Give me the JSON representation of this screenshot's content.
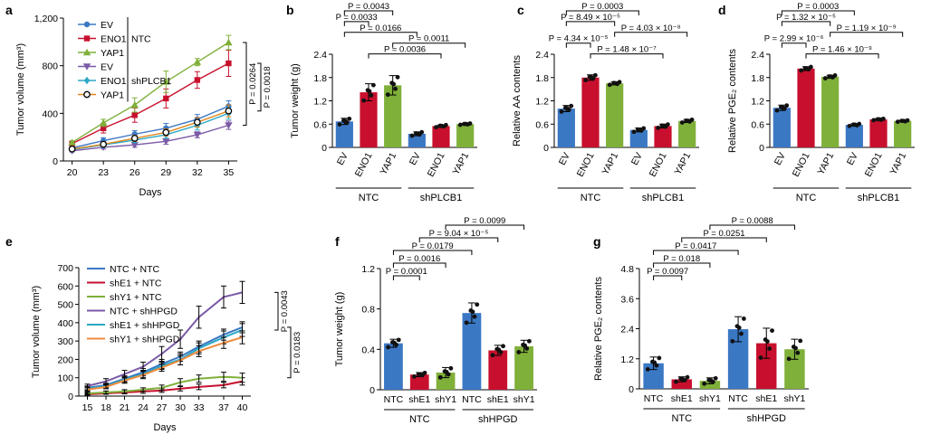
{
  "chart_data": [
    {
      "panel": "a",
      "type": "line",
      "xlabel": "Days",
      "ylabel": "Tumor volume (mm³)",
      "x": [
        20,
        23,
        26,
        29,
        32,
        35
      ],
      "xticks": [
        "20",
        "23",
        "26",
        "29",
        "32",
        "35"
      ],
      "ylim": [
        0,
        1200
      ],
      "yticks": [
        "0",
        "400",
        "800",
        "1,200"
      ],
      "legend_groups": [
        {
          "label": "NTC",
          "series": [
            0,
            1,
            2
          ]
        },
        {
          "label": "shPLCB1",
          "series": [
            3,
            4,
            5
          ]
        }
      ],
      "series": [
        {
          "name": "EV",
          "color": "#3b78c4",
          "marker": "circle-filled",
          "values": [
            110,
            170,
            225,
            275,
            350,
            460
          ],
          "errors": [
            15,
            25,
            30,
            40,
            40,
            45
          ]
        },
        {
          "name": "ENO1",
          "color": "#c8102e",
          "marker": "square",
          "values": [
            145,
            275,
            385,
            525,
            680,
            820
          ],
          "errors": [
            15,
            40,
            60,
            80,
            70,
            110
          ]
        },
        {
          "name": "YAP1",
          "color": "#7fb03a",
          "marker": "triangle-up",
          "values": [
            155,
            320,
            470,
            665,
            830,
            995
          ],
          "errors": [
            15,
            30,
            60,
            90,
            30,
            60
          ]
        },
        {
          "name": "EV",
          "color": "#7b5aa6",
          "marker": "triangle-down",
          "values": [
            85,
            115,
            135,
            165,
            220,
            300
          ],
          "errors": [
            10,
            15,
            20,
            25,
            25,
            35
          ]
        },
        {
          "name": "ENO1",
          "color": "#2aa8c4",
          "marker": "diamond",
          "values": [
            95,
            135,
            175,
            220,
            300,
            400
          ],
          "errors": [
            10,
            20,
            20,
            30,
            40,
            50
          ]
        },
        {
          "name": "YAP1",
          "color": "#e0861f",
          "marker": "circle-open",
          "values": [
            100,
            140,
            190,
            240,
            325,
            420
          ],
          "errors": [
            10,
            20,
            25,
            30,
            40,
            50
          ]
        }
      ],
      "annotations": [
        "P = 0.0264",
        "P = 0.0018"
      ]
    },
    {
      "panel": "b",
      "type": "bar",
      "ylabel": "Tumor weight (g)",
      "categories": [
        "EV",
        "ENO1",
        "YAP1",
        "EV",
        "ENO1",
        "YAP1"
      ],
      "groups": [
        {
          "label": "NTC",
          "members": [
            0,
            1,
            2
          ]
        },
        {
          "label": "shPLCB1",
          "members": [
            3,
            4,
            5
          ]
        }
      ],
      "colors": [
        "#3b78c4",
        "#c8102e",
        "#7fb03a",
        "#3b78c4",
        "#c8102e",
        "#7fb03a"
      ],
      "values": [
        0.67,
        1.42,
        1.6,
        0.35,
        0.55,
        0.6
      ],
      "errors": [
        0.08,
        0.22,
        0.25,
        0.05,
        0.03,
        0.02
      ],
      "ylim": [
        0,
        2.4
      ],
      "yticks": [
        "0",
        "0.6",
        "1.2",
        "1.8",
        "2.4"
      ],
      "comparisons": [
        {
          "a": 0,
          "b": 2,
          "label": "P = 0.0043"
        },
        {
          "a": 0,
          "b": 1,
          "label": "P = 0.0033"
        },
        {
          "a": 0,
          "b": 3,
          "label": "P = 0.0166"
        },
        {
          "a": 2,
          "b": 5,
          "label": "P = 0.0011"
        },
        {
          "a": 1,
          "b": 4,
          "label": "P = 0.0036"
        }
      ]
    },
    {
      "panel": "c",
      "type": "bar",
      "ylabel": "Relative AA contents",
      "categories": [
        "EV",
        "ENO1",
        "YAP1",
        "EV",
        "ENO1",
        "YAP1"
      ],
      "groups": [
        {
          "label": "NTC",
          "members": [
            0,
            1,
            2
          ]
        },
        {
          "label": "shPLCB1",
          "members": [
            3,
            4,
            5
          ]
        }
      ],
      "colors": [
        "#3b78c4",
        "#c8102e",
        "#7fb03a",
        "#3b78c4",
        "#c8102e",
        "#7fb03a"
      ],
      "values": [
        1.0,
        1.8,
        1.65,
        0.45,
        0.55,
        0.68
      ],
      "errors": [
        0.08,
        0.07,
        0.04,
        0.05,
        0.05,
        0.04
      ],
      "ylim": [
        0,
        2.4
      ],
      "yticks": [
        "0",
        "0.6",
        "1.2",
        "1.8",
        "2.4"
      ],
      "comparisons": [
        {
          "a": 0,
          "b": 3,
          "label": "P = 0.0003"
        },
        {
          "a": 0,
          "b": 2,
          "label": "P = 8.49 × 10⁻⁵"
        },
        {
          "a": 2,
          "b": 5,
          "label": "P = 4.03 × 10⁻⁸"
        },
        {
          "a": 0,
          "b": 1,
          "label": "P = 4.34 × 10⁻⁵"
        },
        {
          "a": 1,
          "b": 4,
          "label": "P = 1.48 × 10⁻⁷"
        }
      ]
    },
    {
      "panel": "d",
      "type": "bar",
      "ylabel": "Relative PGE₂ contents",
      "categories": [
        "EV",
        "ENO1",
        "YAP1",
        "EV",
        "ENO1",
        "YAP1"
      ],
      "groups": [
        {
          "label": "NTC",
          "members": [
            0,
            1,
            2
          ]
        },
        {
          "label": "shPLCB1",
          "members": [
            3,
            4,
            5
          ]
        }
      ],
      "colors": [
        "#3b78c4",
        "#c8102e",
        "#7fb03a",
        "#3b78c4",
        "#c8102e",
        "#7fb03a"
      ],
      "values": [
        1.02,
        2.03,
        1.82,
        0.58,
        0.72,
        0.68
      ],
      "errors": [
        0.07,
        0.05,
        0.04,
        0.03,
        0.02,
        0.02
      ],
      "ylim": [
        0,
        2.4
      ],
      "yticks": [
        "0",
        "0.6",
        "1.2",
        "1.8",
        "2.4"
      ],
      "comparisons": [
        {
          "a": 0,
          "b": 3,
          "label": "P = 0.0003"
        },
        {
          "a": 0,
          "b": 2,
          "label": "P = 1.32 × 10⁻⁵"
        },
        {
          "a": 2,
          "b": 5,
          "label": "P = 1.19 × 10⁻⁹"
        },
        {
          "a": 0,
          "b": 1,
          "label": "P = 2.99 × 10⁻⁶"
        },
        {
          "a": 1,
          "b": 4,
          "label": "P = 1.46 × 10⁻⁹"
        }
      ]
    },
    {
      "panel": "e",
      "type": "line",
      "xlabel": "Days",
      "ylabel": "Tumor volume (mm³)",
      "x": [
        15,
        18,
        21,
        24,
        27,
        30,
        33,
        37,
        40
      ],
      "xticks": [
        "15",
        "18",
        "21",
        "24",
        "27",
        "30",
        "33",
        "37",
        "40"
      ],
      "ylim": [
        0,
        700
      ],
      "yticks": [
        "0",
        "100",
        "200",
        "300",
        "400",
        "500",
        "600",
        "700"
      ],
      "series": [
        {
          "name": "NTC + NTC",
          "color": "#3b78c4",
          "values": [
            45,
            60,
            95,
            130,
            175,
            215,
            270,
            335,
            375
          ],
          "errors": [
            10,
            10,
            15,
            20,
            25,
            25,
            30,
            30,
            30
          ]
        },
        {
          "name": "shE1 + NTC",
          "color": "#c8102e",
          "values": [
            10,
            15,
            20,
            25,
            30,
            40,
            50,
            60,
            80
          ],
          "errors": [
            5,
            5,
            8,
            10,
            10,
            12,
            15,
            15,
            20
          ]
        },
        {
          "name": "shY1 + NTC",
          "color": "#7fb03a",
          "values": [
            15,
            20,
            25,
            35,
            45,
            75,
            95,
            105,
            100
          ],
          "errors": [
            5,
            8,
            10,
            10,
            15,
            20,
            20,
            25,
            25
          ]
        },
        {
          "name": "NTC + shHPGD",
          "color": "#7b5aa6",
          "values": [
            55,
            80,
            120,
            160,
            230,
            310,
            430,
            540,
            565
          ],
          "errors": [
            10,
            15,
            20,
            25,
            40,
            50,
            60,
            60,
            60
          ]
        },
        {
          "name": "shE1 + shHPGD",
          "color": "#2aa8c4",
          "values": [
            40,
            55,
            90,
            120,
            165,
            200,
            260,
            320,
            360
          ],
          "errors": [
            10,
            10,
            15,
            20,
            20,
            30,
            30,
            35,
            35
          ]
        },
        {
          "name": "shY1 + shHPGD",
          "color": "#f08a3c",
          "values": [
            35,
            50,
            85,
            115,
            155,
            195,
            245,
            290,
            320
          ],
          "errors": [
            10,
            10,
            15,
            20,
            20,
            25,
            30,
            30,
            35
          ]
        }
      ],
      "annotations": [
        "P = 0.0043",
        "P = 0.0183"
      ]
    },
    {
      "panel": "f",
      "type": "bar",
      "ylabel": "Tumor weight (g)",
      "categories": [
        "NTC",
        "shE1",
        "shY1",
        "NTC",
        "shE1",
        "shY1"
      ],
      "groups": [
        {
          "label": "NTC",
          "members": [
            0,
            1,
            2
          ]
        },
        {
          "label": "shHPGD",
          "members": [
            3,
            4,
            5
          ]
        }
      ],
      "colors": [
        "#3b78c4",
        "#c8102e",
        "#7fb03a",
        "#3b78c4",
        "#c8102e",
        "#7fb03a"
      ],
      "values": [
        0.46,
        0.15,
        0.17,
        0.76,
        0.39,
        0.43
      ],
      "errors": [
        0.04,
        0.02,
        0.05,
        0.1,
        0.05,
        0.06
      ],
      "ylim": [
        0,
        1.2
      ],
      "yticks": [
        "0",
        "0.4",
        "0.8",
        "1.2"
      ],
      "comparisons": [
        {
          "a": 2,
          "b": 5,
          "label": "P = 0.0099"
        },
        {
          "a": 1,
          "b": 4,
          "label": "P = 9.04 × 10⁻⁵"
        },
        {
          "a": 0,
          "b": 3,
          "label": "P = 0.0179"
        },
        {
          "a": 0,
          "b": 2,
          "label": "P = 0.0016"
        },
        {
          "a": 0,
          "b": 1,
          "label": "P = 0.0001"
        }
      ]
    },
    {
      "panel": "g",
      "type": "bar",
      "ylabel": "Relative PGE₂ contents",
      "categories": [
        "NTC",
        "shE1",
        "shY1",
        "NTC",
        "shE1",
        "shY1"
      ],
      "groups": [
        {
          "label": "NTC",
          "members": [
            0,
            1,
            2
          ]
        },
        {
          "label": "shHPGD",
          "members": [
            3,
            4,
            5
          ]
        }
      ],
      "colors": [
        "#3b78c4",
        "#c8102e",
        "#7fb03a",
        "#3b78c4",
        "#c8102e",
        "#7fb03a"
      ],
      "values": [
        1.02,
        0.38,
        0.32,
        2.38,
        1.82,
        1.58
      ],
      "errors": [
        0.25,
        0.1,
        0.12,
        0.5,
        0.6,
        0.4
      ],
      "ylim": [
        0,
        4.8
      ],
      "yticks": [
        "0",
        "1.2",
        "2.4",
        "3.6",
        "4.8"
      ],
      "comparisons": [
        {
          "a": 2,
          "b": 5,
          "label": "P = 0.0088"
        },
        {
          "a": 1,
          "b": 4,
          "label": "P = 0.0251"
        },
        {
          "a": 0,
          "b": 3,
          "label": "P = 0.0417"
        },
        {
          "a": 0,
          "b": 2,
          "label": "P = 0.018"
        },
        {
          "a": 0,
          "b": 1,
          "label": "P = 0.0097"
        }
      ]
    }
  ]
}
